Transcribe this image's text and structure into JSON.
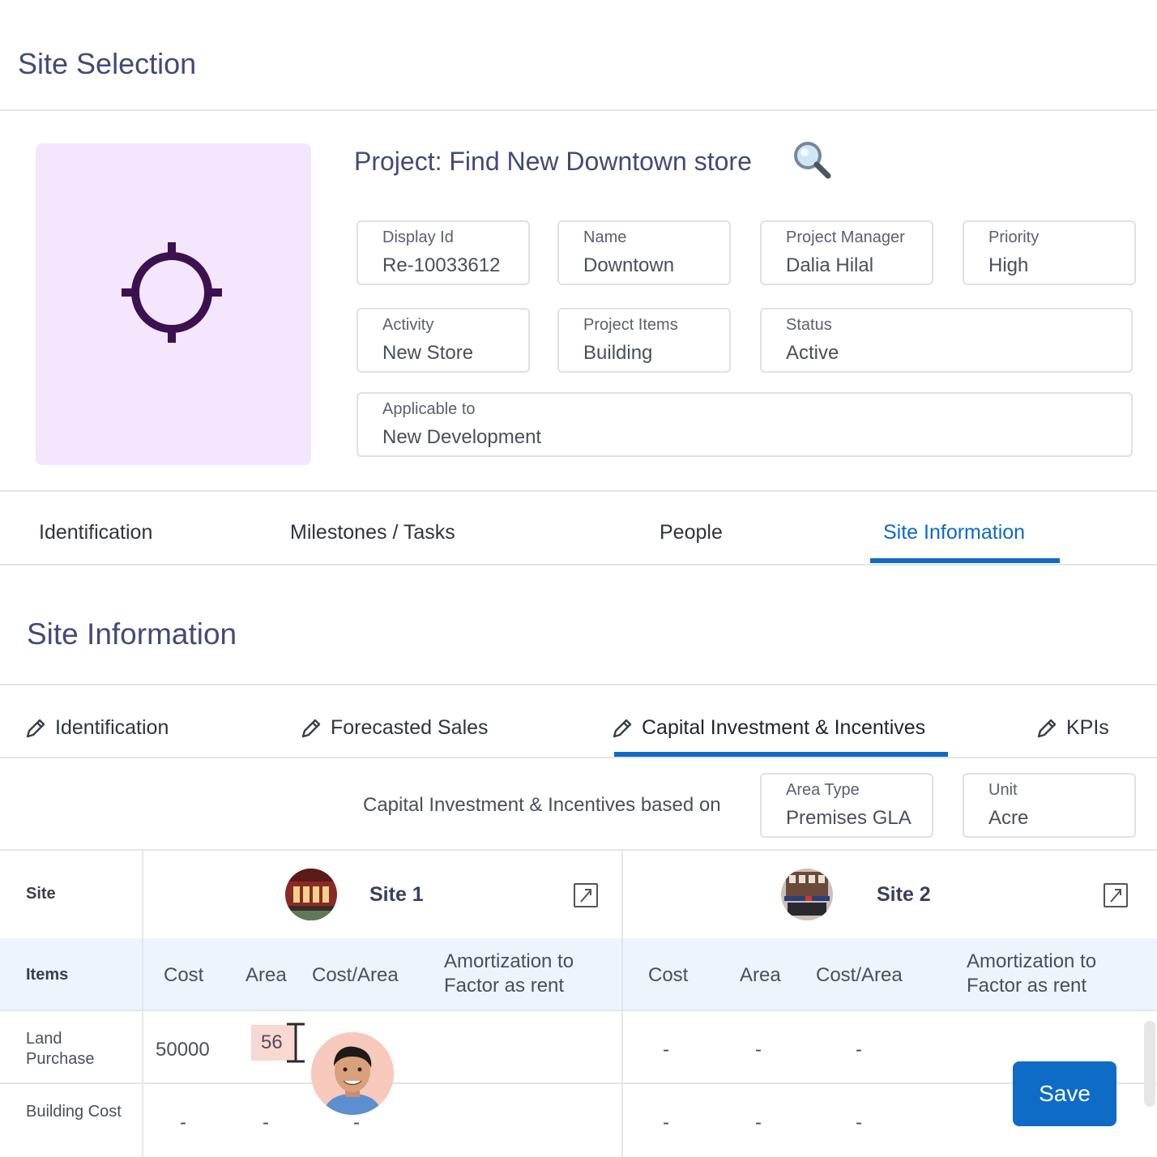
{
  "page": {
    "title": "Site Selection"
  },
  "project": {
    "title": "Project: Find New Downtown store",
    "icon": "crosshair-icon",
    "search_icon": "magnifier-icon",
    "thumb_bg": "#f4e6fd",
    "fields": {
      "display_id": {
        "label": "Display Id",
        "value": "Re-10033612"
      },
      "name": {
        "label": "Name",
        "value": "Downtown"
      },
      "project_manager": {
        "label": "Project Manager",
        "value": "Dalia Hilal"
      },
      "priority": {
        "label": "Priority",
        "value": "High"
      },
      "activity": {
        "label": "Activity",
        "value": "New Store"
      },
      "project_items": {
        "label": "Project Items",
        "value": "Building"
      },
      "status": {
        "label": "Status",
        "value": "Active"
      },
      "applicable_to": {
        "label": "Applicable to",
        "value": "New Development"
      }
    }
  },
  "tabs": {
    "items": [
      "Identification",
      "Milestones / Tasks",
      "People",
      "Site Information"
    ],
    "active": "Site Information",
    "accent": "#0e6bc6"
  },
  "site_info": {
    "title": "Site Information",
    "subtabs": [
      "Identification",
      "Forecasted Sales",
      "Capital Investment & Incentives",
      "KPIs"
    ],
    "active_subtab": "Capital Investment & Incentives",
    "basis_text": "Capital Investment & Incentives based on",
    "area_type": {
      "label": "Area Type",
      "value": "Premises GLA"
    },
    "unit": {
      "label": "Unit",
      "value": "Acre"
    }
  },
  "table": {
    "site_header": "Site",
    "items_header": "Items",
    "sites": [
      {
        "name": "Site 1"
      },
      {
        "name": "Site 2"
      }
    ],
    "columns": [
      "Cost",
      "Area",
      "Cost/Area",
      "Amortization to Factor as rent"
    ],
    "rows": [
      {
        "item": "Land Purchase",
        "site1": {
          "cost": "50000",
          "area": "56",
          "cost_area": "",
          "amort": ""
        },
        "site2": {
          "cost": "-",
          "area": "-",
          "cost_area": "-",
          "amort": ""
        }
      },
      {
        "item": "Building Cost",
        "site1": {
          "cost": "-",
          "area": "-",
          "cost_area": "-",
          "amort": ""
        },
        "site2": {
          "cost": "-",
          "area": "-",
          "cost_area": "-",
          "amort": ""
        }
      }
    ]
  },
  "actions": {
    "save_label": "Save",
    "save_color": "#0e6bc6"
  }
}
